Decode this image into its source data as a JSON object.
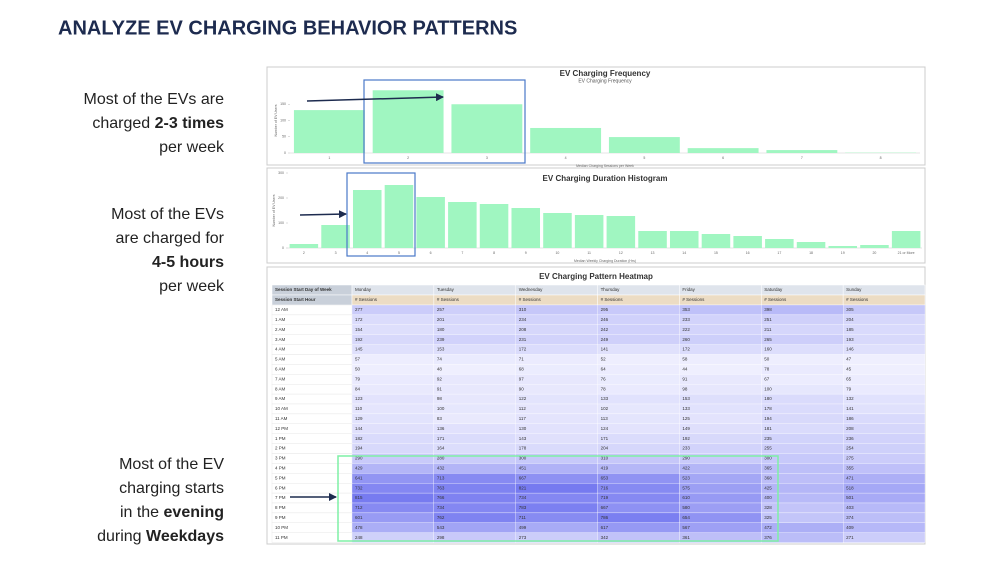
{
  "title": "ANALYZE EV CHARGING BEHAVIOR PATTERNS",
  "annotations": [
    {
      "lines": [
        [
          {
            "text": "Most of the EVs are"
          }
        ],
        [
          {
            "text": "charged"
          },
          {
            "text": "2-3 times",
            "bold": true
          }
        ],
        [
          {
            "text": "per week"
          }
        ]
      ]
    },
    {
      "lines": [
        [
          {
            "text": "Most of the EVs"
          }
        ],
        [
          {
            "text": "are charged for"
          }
        ],
        [
          {
            "text": "4-5 hours",
            "bold": true
          }
        ],
        [
          {
            "text": "per week"
          }
        ]
      ]
    },
    {
      "lines": [
        [
          {
            "text": "Most of the EV"
          }
        ],
        [
          {
            "text": "charging starts"
          }
        ],
        [
          {
            "text": "in the"
          },
          {
            "text": "evening",
            "bold": true
          }
        ],
        [
          {
            "text": "during"
          },
          {
            "text": "Weekdays",
            "bold": true
          }
        ]
      ]
    }
  ],
  "chart_data": [
    {
      "type": "bar",
      "title": "EV Charging Frequency",
      "subtitle": "EV Charging Frequency",
      "x_label": "Median Charging Sessions per Week",
      "y_label": "Number of EV Users",
      "categories": [
        "1",
        "2",
        "3",
        "4",
        "5",
        "6",
        "7",
        "8"
      ],
      "values": [
        132,
        193,
        150,
        77,
        49,
        15,
        9,
        1
      ],
      "color": "#a0f6c1",
      "ylim": [
        0,
        200
      ],
      "yticks": [
        0,
        50,
        100,
        150
      ],
      "grid": false
    },
    {
      "type": "bar",
      "title": "EV Charging Duration Histogram",
      "x_label": "Median Weekly Charging Duration (Hrs)",
      "y_label": "Number of EV Users",
      "categories": [
        "2",
        "3",
        "4",
        "5",
        "6",
        "7",
        "8",
        "9",
        "10",
        "11",
        "12",
        "13",
        "14",
        "15",
        "16",
        "17",
        "18",
        "19",
        "20",
        "21 or More"
      ],
      "values": [
        16,
        92,
        232,
        252,
        204,
        184,
        176,
        160,
        140,
        132,
        128,
        68,
        68,
        56,
        48,
        36,
        24,
        8,
        12,
        68
      ],
      "color": "#a0f6c1",
      "ylim": [
        0,
        300
      ],
      "yticks": [
        0,
        100,
        200,
        300
      ],
      "grid": false
    }
  ],
  "heatmap": {
    "title": "EV Charging Pattern Heatmap",
    "column_header": "Session Start Day of Week",
    "row_header": "Session Start Hour",
    "measure": "# Sessions",
    "columns": [
      "Monday",
      "Tuesday",
      "Wednesday",
      "Thursday",
      "Friday",
      "Saturday",
      "Sunday"
    ],
    "rows": [
      {
        "hour": "12 AM",
        "values": [
          277,
          257,
          310,
          295,
          353,
          398,
          305
        ]
      },
      {
        "hour": "1 AM",
        "values": [
          172,
          201,
          234,
          246,
          233,
          251,
          204
        ]
      },
      {
        "hour": "2 AM",
        "values": [
          154,
          180,
          208,
          242,
          222,
          211,
          185
        ]
      },
      {
        "hour": "3 AM",
        "values": [
          192,
          239,
          231,
          249,
          260,
          265,
          193
        ]
      },
      {
        "hour": "4 AM",
        "values": [
          145,
          153,
          172,
          141,
          172,
          160,
          146
        ]
      },
      {
        "hour": "5 AM",
        "values": [
          57,
          74,
          71,
          52,
          58,
          50,
          47
        ]
      },
      {
        "hour": "6 AM",
        "values": [
          50,
          48,
          68,
          64,
          44,
          78,
          45
        ]
      },
      {
        "hour": "7 AM",
        "values": [
          79,
          92,
          97,
          76,
          91,
          67,
          65
        ]
      },
      {
        "hour": "8 AM",
        "values": [
          84,
          91,
          90,
          78,
          98,
          100,
          79
        ]
      },
      {
        "hour": "9 AM",
        "values": [
          123,
          98,
          122,
          133,
          153,
          180,
          132
        ]
      },
      {
        "hour": "10 AM",
        "values": [
          110,
          100,
          112,
          102,
          133,
          178,
          141
        ]
      },
      {
        "hour": "11 AM",
        "values": [
          129,
          83,
          117,
          113,
          125,
          194,
          186
        ]
      },
      {
        "hour": "12 PM",
        "values": [
          144,
          136,
          130,
          124,
          149,
          181,
          208
        ]
      },
      {
        "hour": "1 PM",
        "values": [
          182,
          171,
          143,
          171,
          192,
          235,
          236
        ]
      },
      {
        "hour": "2 PM",
        "values": [
          194,
          164,
          178,
          204,
          233,
          255,
          254
        ]
      },
      {
        "hour": "3 PM",
        "values": [
          290,
          280,
          300,
          310,
          290,
          300,
          275
        ]
      },
      {
        "hour": "4 PM",
        "values": [
          429,
          432,
          451,
          419,
          422,
          365,
          355
        ]
      },
      {
        "hour": "5 PM",
        "values": [
          641,
          713,
          667,
          653,
          523,
          368,
          471
        ]
      },
      {
        "hour": "6 PM",
        "values": [
          732,
          763,
          821,
          716,
          575,
          425,
          518
        ]
      },
      {
        "hour": "7 PM",
        "values": [
          815,
          766,
          734,
          719,
          610,
          400,
          501
        ]
      },
      {
        "hour": "8 PM",
        "values": [
          712,
          734,
          783,
          667,
          580,
          328,
          403
        ]
      },
      {
        "hour": "9 PM",
        "values": [
          601,
          762,
          711,
          786,
          654,
          325,
          374
        ]
      },
      {
        "hour": "10 PM",
        "values": [
          478,
          543,
          499,
          617,
          567,
          472,
          409
        ]
      },
      {
        "hour": "11 PM",
        "values": [
          248,
          298,
          273,
          342,
          361,
          376,
          271
        ]
      }
    ]
  }
}
